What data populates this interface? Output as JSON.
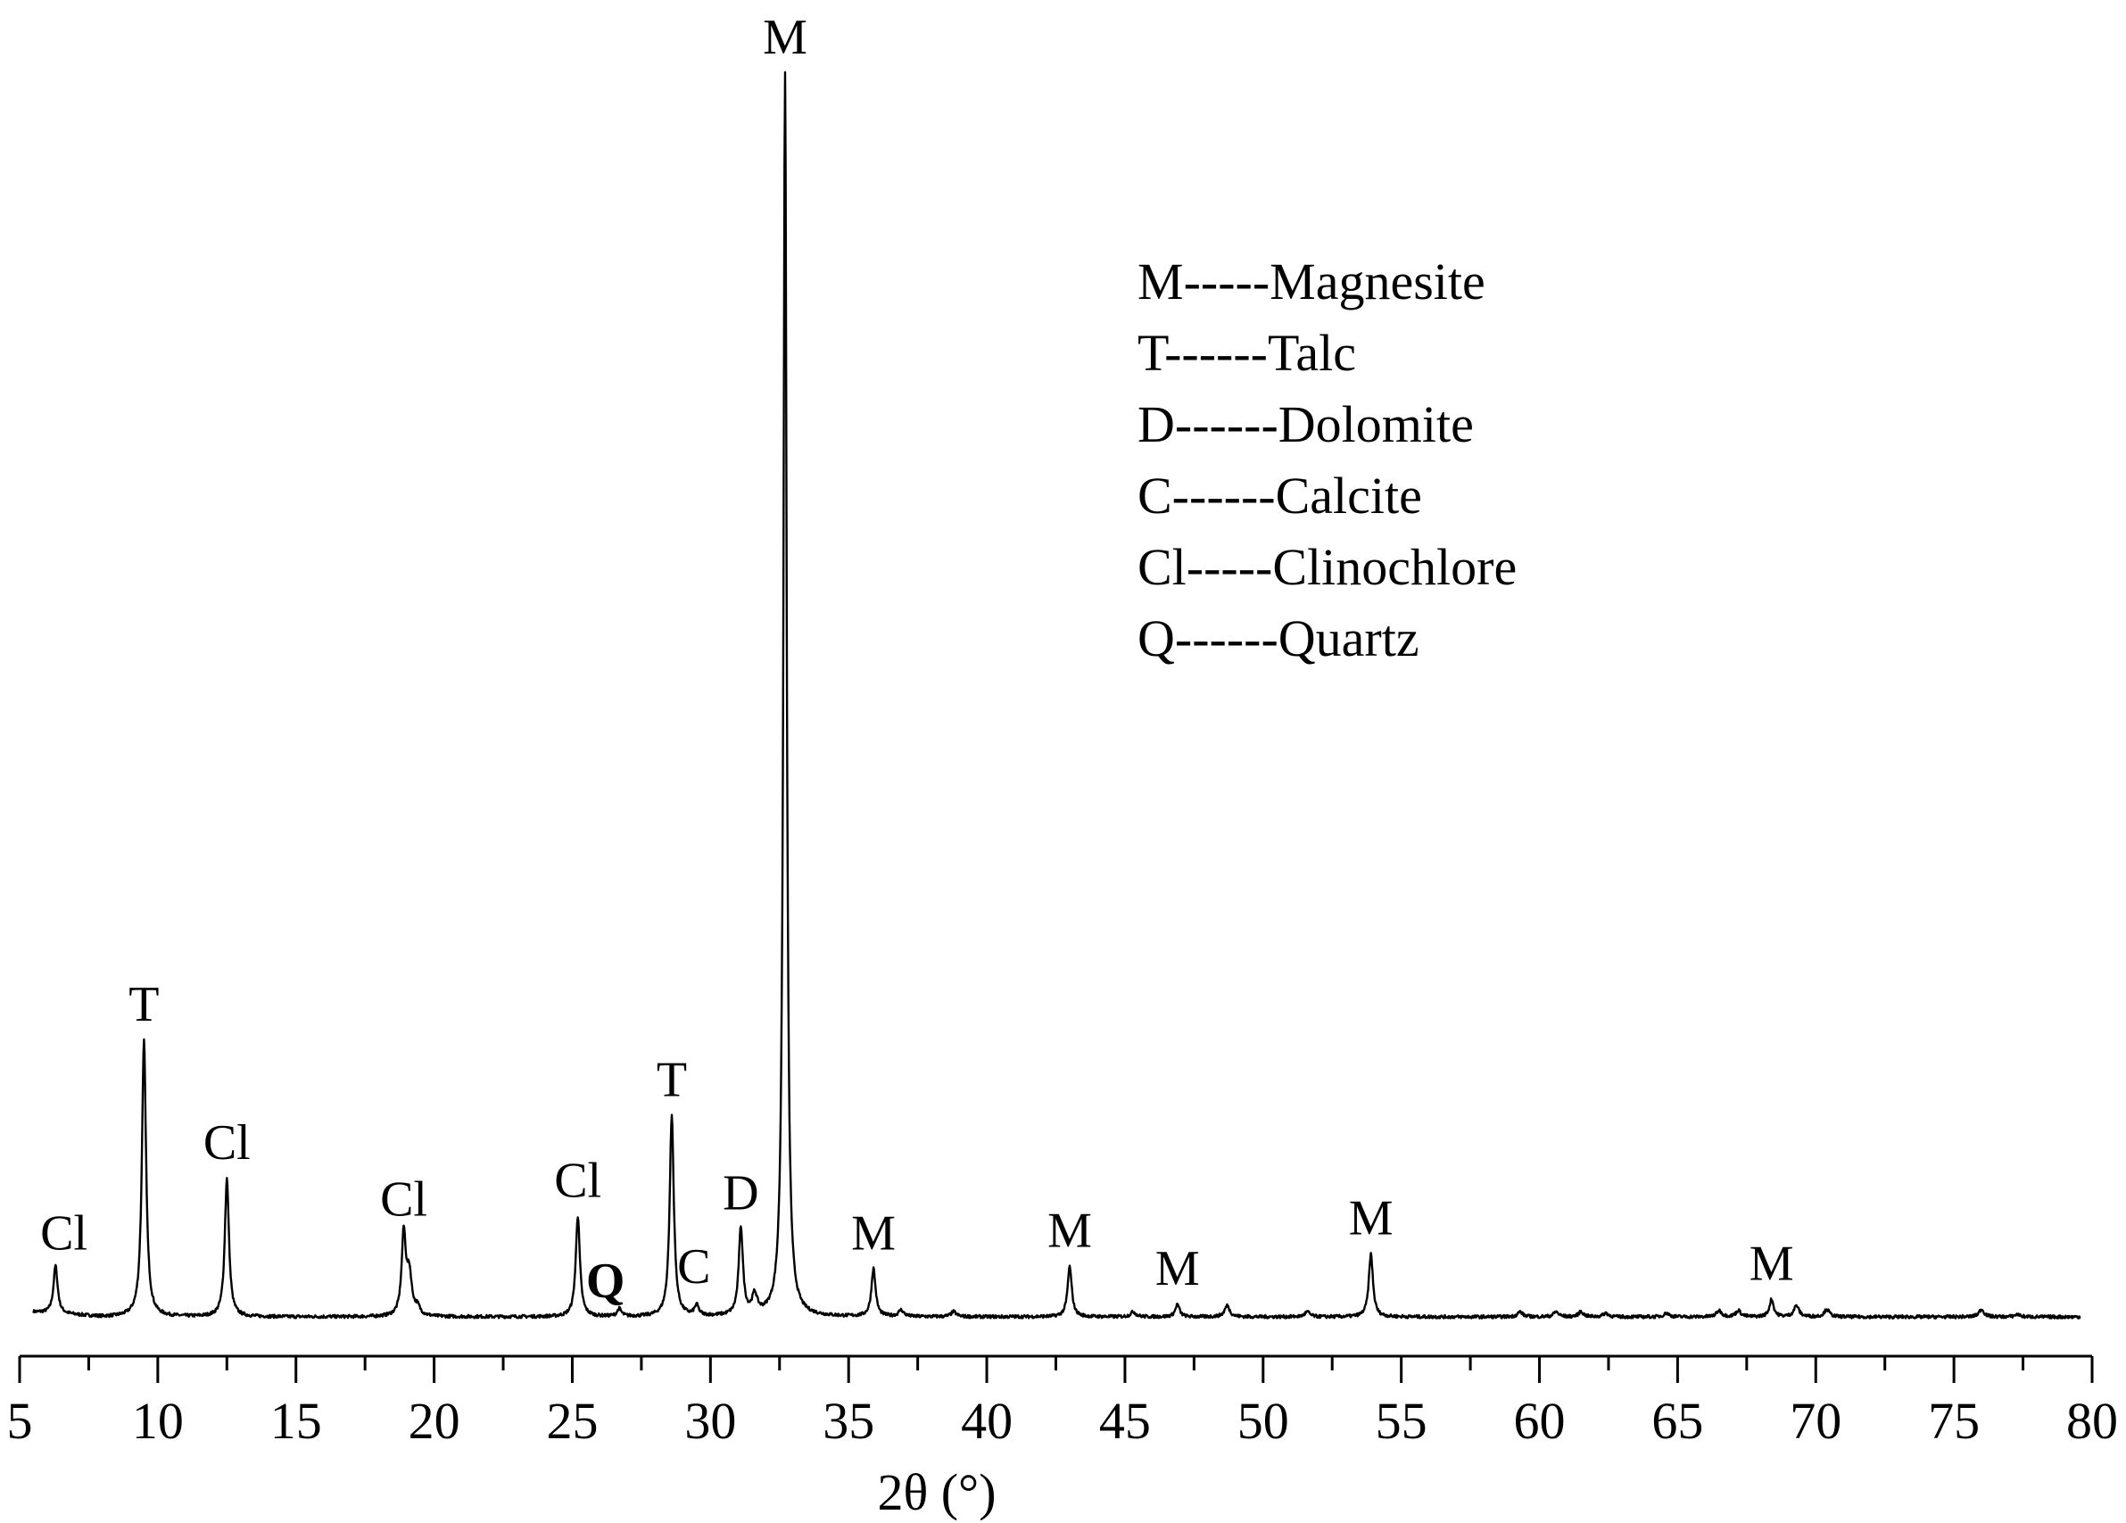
{
  "chart_data": {
    "type": "line",
    "title": "",
    "xlabel": "2θ (°)",
    "ylabel": "",
    "xlim": [
      5,
      80
    ],
    "ylim": [
      0,
      100
    ],
    "xticks": [
      5,
      10,
      15,
      20,
      25,
      30,
      35,
      40,
      45,
      50,
      55,
      60,
      65,
      70,
      75,
      80
    ],
    "grid": false,
    "legend": {
      "placement": "top-right",
      "entries": [
        "M-----Magnesite",
        "T------Talc",
        "D------Dolomite",
        "C------Calcite",
        "Cl-----Clinochlore",
        "Q------Quartz"
      ]
    },
    "series": [
      {
        "baseline": 1.0,
        "peaks": [
          {
            "x": 6.3,
            "y": 3.8,
            "label": "Cl"
          },
          {
            "x": 9.5,
            "y": 22.0,
            "label": "T"
          },
          {
            "x": 12.5,
            "y": 11.0,
            "label": "Cl"
          },
          {
            "x": 18.9,
            "y": 6.5,
            "label": "Cl"
          },
          {
            "x": 25.2,
            "y": 8.0,
            "label": "Cl"
          },
          {
            "x": 26.7,
            "y": 0.6,
            "label": "Q"
          },
          {
            "x": 28.6,
            "y": 16.0,
            "label": "T"
          },
          {
            "x": 29.5,
            "y": 0.8,
            "label": "C"
          },
          {
            "x": 31.1,
            "y": 7.0,
            "label": "D"
          },
          {
            "x": 32.7,
            "y": 99.0,
            "label": "M"
          },
          {
            "x": 35.9,
            "y": 3.8,
            "label": "M"
          },
          {
            "x": 43.0,
            "y": 4.0,
            "label": "M"
          },
          {
            "x": 46.9,
            "y": 1.0,
            "label": "M"
          },
          {
            "x": 53.9,
            "y": 5.0,
            "label": "M"
          },
          {
            "x": 68.4,
            "y": 1.4,
            "label": "M"
          }
        ],
        "minor_peaks": [
          {
            "x": 19.1,
            "y": 3.2
          },
          {
            "x": 19.4,
            "y": 0.6
          },
          {
            "x": 31.6,
            "y": 1.5
          },
          {
            "x": 36.9,
            "y": 0.5
          },
          {
            "x": 38.8,
            "y": 0.4
          },
          {
            "x": 45.3,
            "y": 0.4
          },
          {
            "x": 48.7,
            "y": 0.9
          },
          {
            "x": 51.6,
            "y": 0.4
          },
          {
            "x": 59.3,
            "y": 0.4
          },
          {
            "x": 60.6,
            "y": 0.4
          },
          {
            "x": 61.5,
            "y": 0.4
          },
          {
            "x": 62.4,
            "y": 0.3
          },
          {
            "x": 64.6,
            "y": 0.3
          },
          {
            "x": 66.5,
            "y": 0.5
          },
          {
            "x": 67.2,
            "y": 0.5
          },
          {
            "x": 69.3,
            "y": 0.9
          },
          {
            "x": 70.4,
            "y": 0.6
          },
          {
            "x": 76.0,
            "y": 0.6
          },
          {
            "x": 77.3,
            "y": 0.2
          }
        ]
      }
    ]
  }
}
